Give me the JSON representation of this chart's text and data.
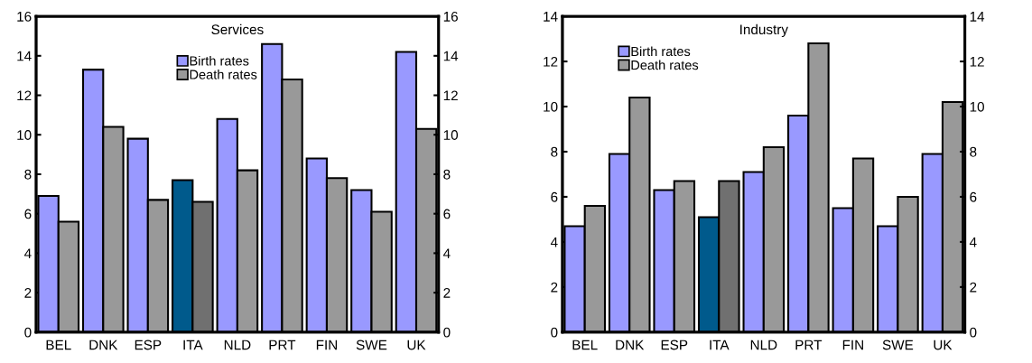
{
  "chart_data": [
    {
      "type": "bar",
      "title": "Services",
      "categories": [
        "BEL",
        "DNK",
        "ESP",
        "ITA",
        "NLD",
        "PRT",
        "FIN",
        "SWE",
        "UK"
      ],
      "series": [
        {
          "name": "Birth rates",
          "color": "#9999ff",
          "colors": [
            "#9999ff",
            "#9999ff",
            "#9999ff",
            "#005a8c",
            "#9999ff",
            "#9999ff",
            "#9999ff",
            "#9999ff",
            "#9999ff"
          ],
          "values": [
            6.9,
            13.3,
            9.8,
            7.7,
            10.8,
            14.6,
            8.8,
            7.2,
            14.2
          ]
        },
        {
          "name": "Death rates",
          "color": "#999999",
          "colors": [
            "#999999",
            "#999999",
            "#999999",
            "#707070",
            "#999999",
            "#999999",
            "#999999",
            "#999999",
            "#999999"
          ],
          "values": [
            5.6,
            10.4,
            6.7,
            6.6,
            8.2,
            12.8,
            7.8,
            6.1,
            10.3
          ]
        }
      ],
      "ylim": [
        0,
        16
      ],
      "yticks": [
        0,
        2,
        4,
        6,
        8,
        10,
        12,
        14,
        16
      ],
      "y2lim": [
        0,
        16
      ],
      "y2ticks": [
        0,
        2,
        4,
        6,
        8,
        10,
        12,
        14,
        16
      ],
      "legend": "top",
      "grid": false
    },
    {
      "type": "bar",
      "title": "Industry",
      "categories": [
        "BEL",
        "DNK",
        "ESP",
        "ITA",
        "NLD",
        "PRT",
        "FIN",
        "SWE",
        "UK"
      ],
      "series": [
        {
          "name": "Birth rates",
          "color": "#9999ff",
          "colors": [
            "#9999ff",
            "#9999ff",
            "#9999ff",
            "#005a8c",
            "#9999ff",
            "#9999ff",
            "#9999ff",
            "#9999ff",
            "#9999ff"
          ],
          "values": [
            4.7,
            7.9,
            6.3,
            5.1,
            7.1,
            9.6,
            5.5,
            4.7,
            7.9
          ]
        },
        {
          "name": "Death rates",
          "color": "#999999",
          "colors": [
            "#999999",
            "#999999",
            "#999999",
            "#707070",
            "#999999",
            "#999999",
            "#999999",
            "#999999",
            "#999999"
          ],
          "values": [
            5.6,
            10.4,
            6.7,
            6.7,
            8.2,
            12.8,
            7.7,
            6.0,
            10.2
          ]
        }
      ],
      "ylim": [
        0,
        14
      ],
      "yticks": [
        0,
        2,
        4,
        6,
        8,
        10,
        12,
        14
      ],
      "y2lim": [
        0,
        14
      ],
      "y2ticks": [
        0,
        2,
        4,
        6,
        8,
        10,
        12,
        14
      ],
      "legend": "top left",
      "grid": false
    }
  ]
}
